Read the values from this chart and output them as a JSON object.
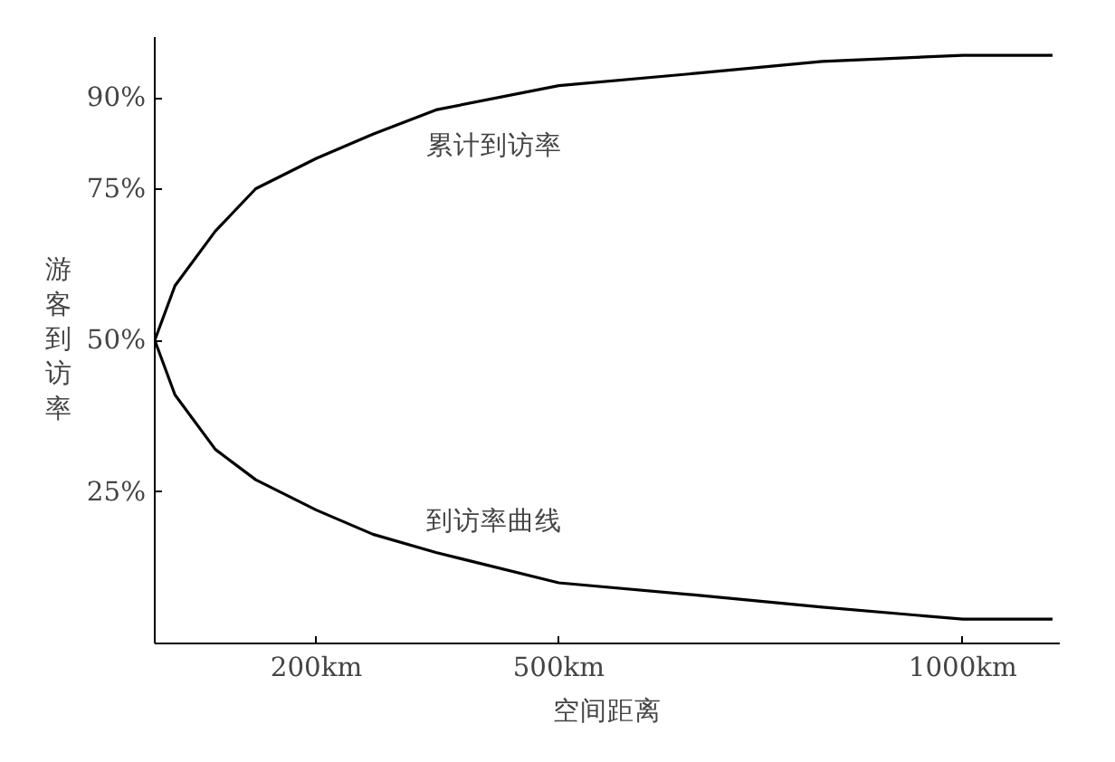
{
  "chart_data": {
    "type": "line",
    "xlabel": "空间距离",
    "ylabel": "游客到访率",
    "xlim": [
      0,
      1120
    ],
    "ylim": [
      0,
      100
    ],
    "xticks": [
      {
        "value": 200,
        "label": "200km"
      },
      {
        "value": 500,
        "label": "500km"
      },
      {
        "value": 1000,
        "label": "1000km"
      }
    ],
    "yticks": [
      {
        "value": 25,
        "label": "25%"
      },
      {
        "value": 50,
        "label": "50%"
      },
      {
        "value": 75,
        "label": "75%"
      },
      {
        "value": 90,
        "label": "90%"
      }
    ],
    "series": [
      {
        "name": "累计到访率",
        "color": "#000000",
        "x": [
          0,
          25,
          75,
          125,
          200,
          270,
          348,
          500,
          668,
          826,
          1000,
          1111
        ],
        "values": [
          50,
          59,
          68,
          75,
          80,
          84,
          88,
          92,
          94,
          96,
          97,
          97
        ]
      },
      {
        "name": "到访率曲线",
        "color": "#000000",
        "x": [
          0,
          25,
          75,
          125,
          200,
          270,
          348,
          500,
          668,
          826,
          1000,
          1111
        ],
        "values": [
          50,
          41,
          32,
          27,
          22,
          18,
          15,
          10,
          8,
          6,
          4,
          4
        ]
      }
    ],
    "grid": false,
    "legend": false,
    "marker": "none",
    "line_style": "solid"
  }
}
